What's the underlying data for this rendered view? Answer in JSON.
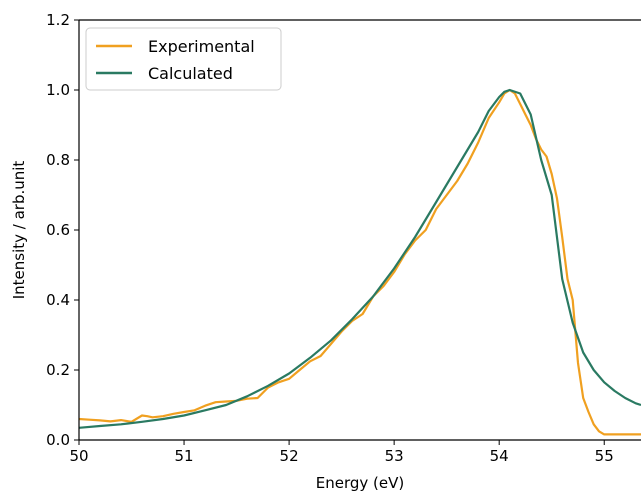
{
  "chart_data": {
    "type": "line",
    "title": "",
    "xlabel": "Energy (eV)",
    "ylabel": "Intensity / arb.unit",
    "xlim": [
      50,
      55.35
    ],
    "ylim": [
      0,
      1.2
    ],
    "x_ticks": [
      50,
      51,
      52,
      53,
      54,
      55
    ],
    "x_tick_labels": [
      "50",
      "51",
      "52",
      "53",
      "54",
      "55"
    ],
    "y_ticks": [
      0.0,
      0.2,
      0.4,
      0.6,
      0.8,
      1.0,
      1.2
    ],
    "y_tick_labels": [
      "0.0",
      "0.2",
      "0.4",
      "0.6",
      "0.8",
      "1.0",
      "1.2"
    ],
    "grid": false,
    "legend_position": "top-left",
    "series": [
      {
        "name": "Experimental",
        "color": "#f0a020",
        "x": [
          50.0,
          50.1,
          50.2,
          50.3,
          50.4,
          50.5,
          50.6,
          50.65,
          50.7,
          50.8,
          50.9,
          51.0,
          51.1,
          51.2,
          51.3,
          51.4,
          51.5,
          51.6,
          51.7,
          51.8,
          51.9,
          52.0,
          52.1,
          52.2,
          52.3,
          52.4,
          52.5,
          52.6,
          52.7,
          52.8,
          52.9,
          53.0,
          53.1,
          53.2,
          53.3,
          53.4,
          53.5,
          53.6,
          53.7,
          53.8,
          53.9,
          54.0,
          54.05,
          54.1,
          54.15,
          54.2,
          54.25,
          54.3,
          54.35,
          54.4,
          54.45,
          54.5,
          54.55,
          54.6,
          54.65,
          54.7,
          54.75,
          54.8,
          54.85,
          54.9,
          54.95,
          55.0,
          55.05,
          55.1,
          55.15,
          55.2,
          55.25,
          55.3,
          55.35
        ],
        "y": [
          0.06,
          0.058,
          0.056,
          0.053,
          0.057,
          0.052,
          0.07,
          0.068,
          0.065,
          0.068,
          0.075,
          0.08,
          0.085,
          0.098,
          0.108,
          0.11,
          0.112,
          0.118,
          0.12,
          0.15,
          0.165,
          0.175,
          0.2,
          0.225,
          0.24,
          0.275,
          0.31,
          0.34,
          0.36,
          0.41,
          0.44,
          0.48,
          0.53,
          0.57,
          0.6,
          0.66,
          0.7,
          0.74,
          0.79,
          0.85,
          0.92,
          0.965,
          0.99,
          1.0,
          0.99,
          0.96,
          0.93,
          0.9,
          0.86,
          0.83,
          0.81,
          0.76,
          0.69,
          0.58,
          0.46,
          0.4,
          0.22,
          0.12,
          0.08,
          0.045,
          0.025,
          0.016,
          0.016,
          0.016,
          0.016,
          0.016,
          0.016,
          0.016,
          0.016
        ]
      },
      {
        "name": "Calculated",
        "color": "#2a7a62",
        "x": [
          50.0,
          50.2,
          50.4,
          50.6,
          50.8,
          51.0,
          51.2,
          51.4,
          51.6,
          51.8,
          52.0,
          52.2,
          52.4,
          52.6,
          52.8,
          53.0,
          53.2,
          53.4,
          53.6,
          53.8,
          53.9,
          54.0,
          54.05,
          54.1,
          54.2,
          54.3,
          54.4,
          54.5,
          54.6,
          54.7,
          54.8,
          54.9,
          55.0,
          55.1,
          55.2,
          55.3,
          55.35
        ],
        "y": [
          0.035,
          0.04,
          0.045,
          0.052,
          0.06,
          0.07,
          0.085,
          0.1,
          0.125,
          0.155,
          0.19,
          0.235,
          0.285,
          0.345,
          0.41,
          0.49,
          0.58,
          0.68,
          0.78,
          0.88,
          0.94,
          0.98,
          0.995,
          1.0,
          0.99,
          0.93,
          0.8,
          0.7,
          0.46,
          0.335,
          0.25,
          0.2,
          0.165,
          0.14,
          0.12,
          0.105,
          0.1
        ]
      }
    ]
  }
}
